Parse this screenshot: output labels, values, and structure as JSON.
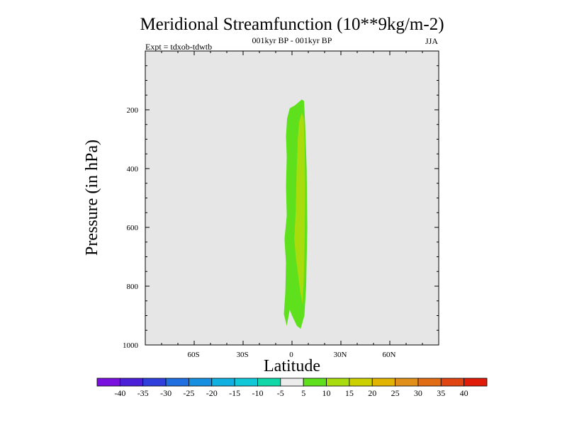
{
  "chart_data": {
    "type": "heatmap",
    "title": "Meridional Streamfunction (10**9kg/m-2)",
    "subtitle": "001kyr BP - 001kyr BP",
    "left_label": "Expt = tdxob-tdwtb",
    "right_label": "JJA",
    "xlabel": "Latitude",
    "ylabel": "Pressure (in hPa)",
    "xlim": [
      -90,
      90
    ],
    "ylim": [
      1000,
      0
    ],
    "x_ticks": [
      {
        "value": -60,
        "label": "60S"
      },
      {
        "value": -30,
        "label": "30S"
      },
      {
        "value": 0,
        "label": "0"
      },
      {
        "value": 30,
        "label": "30N"
      },
      {
        "value": 60,
        "label": "60N"
      }
    ],
    "y_ticks": [
      {
        "value": 200,
        "label": "200"
      },
      {
        "value": 400,
        "label": "400"
      },
      {
        "value": 600,
        "label": "600"
      },
      {
        "value": 800,
        "label": "800"
      },
      {
        "value": 1000,
        "label": "1000"
      }
    ],
    "background_color": "#e6e6e6",
    "contour_levels": [
      -40,
      -35,
      -30,
      -25,
      -20,
      -15,
      -10,
      -5,
      5,
      10,
      15,
      20,
      25,
      30,
      35,
      40
    ],
    "colorbar_labels": [
      "-40",
      "-35",
      "-30",
      "-25",
      "-20",
      "-15",
      "-10",
      "-5",
      "5",
      "10",
      "15",
      "20",
      "25",
      "30",
      "35",
      "40"
    ],
    "colors": [
      "#7a10e0",
      "#4b1fd8",
      "#2f3fdc",
      "#1f6fe0",
      "#178fe0",
      "#10b0e0",
      "#10c8d8",
      "#10d8a8",
      "#ececec",
      "#5ee01c",
      "#a8dc0c",
      "#ccd000",
      "#e0b400",
      "#e09018",
      "#e06c14",
      "#e04410",
      "#e01c08"
    ],
    "filled_regions": [
      {
        "level_range": "5 to 10",
        "color": "#5ee01c",
        "polygon": [
          [
            -3.2,
            935
          ],
          [
            -5.0,
            895
          ],
          [
            -4.1,
            820
          ],
          [
            -3.7,
            720
          ],
          [
            -4.6,
            640
          ],
          [
            -3.2,
            560
          ],
          [
            -3.7,
            460
          ],
          [
            -3.2,
            360
          ],
          [
            -3.7,
            290
          ],
          [
            -3.0,
            230
          ],
          [
            -1.4,
            195
          ],
          [
            1.8,
            185
          ],
          [
            6.0,
            165
          ],
          [
            7.4,
            170
          ],
          [
            8.1,
            250
          ],
          [
            9.0,
            400
          ],
          [
            9.4,
            600
          ],
          [
            8.7,
            800
          ],
          [
            7.6,
            900
          ],
          [
            5.3,
            945
          ],
          [
            3.0,
            935
          ],
          [
            0.0,
            900
          ],
          [
            -1.4,
            880
          ]
        ]
      },
      {
        "level_range": "10 to 15",
        "color": "#a8dc0c",
        "polygon": [
          [
            1.4,
            640
          ],
          [
            2.3,
            540
          ],
          [
            2.8,
            420
          ],
          [
            3.5,
            300
          ],
          [
            4.4,
            240
          ],
          [
            6.0,
            210
          ],
          [
            7.2,
            230
          ],
          [
            7.8,
            330
          ],
          [
            8.1,
            480
          ],
          [
            7.8,
            650
          ],
          [
            7.2,
            780
          ],
          [
            6.5,
            860
          ],
          [
            5.1,
            820
          ],
          [
            3.7,
            760
          ],
          [
            2.3,
            700
          ]
        ]
      }
    ]
  }
}
